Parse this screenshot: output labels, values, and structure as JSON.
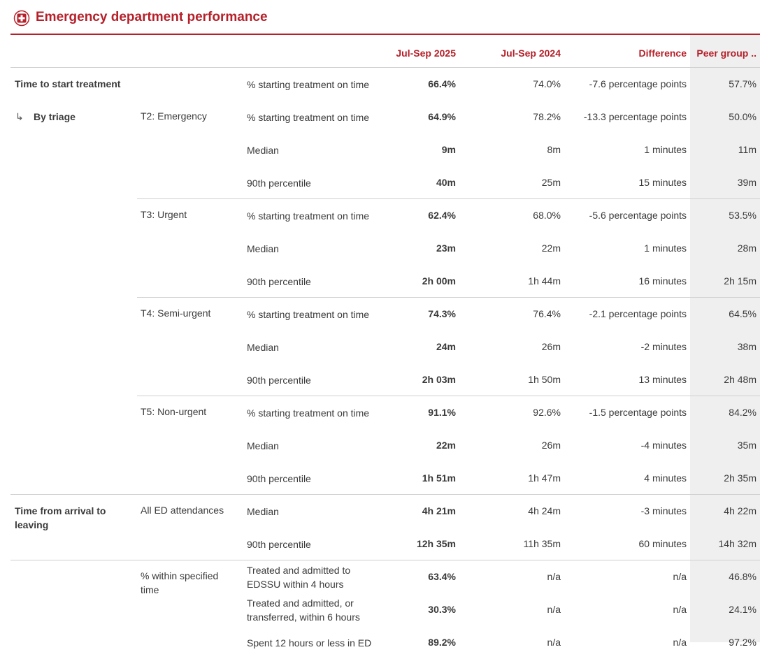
{
  "header": {
    "title": "Emergency department performance"
  },
  "table": {
    "columns": [
      "Jul-Sep 2025",
      "Jul-Sep 2024",
      "Difference",
      "Peer group .."
    ],
    "sections": [
      {
        "label": "Time to start treatment",
        "groups": [
          {
            "rows": [
              {
                "measure": "% starting treatment on time",
                "values": [
                  "66.4%",
                  "74.0%",
                  "-7.6 percentage points",
                  "57.7%"
                ]
              }
            ]
          }
        ]
      },
      {
        "label": "By triage",
        "groups": [
          {
            "label": "T2: Emergency",
            "rows": [
              {
                "measure": "% starting treatment on time",
                "values": [
                  "64.9%",
                  "78.2%",
                  "-13.3 percentage points",
                  "50.0%"
                ]
              },
              {
                "measure": "Median",
                "values": [
                  "9m",
                  "8m",
                  "1 minutes",
                  "11m"
                ]
              },
              {
                "measure": "90th percentile",
                "values": [
                  "40m",
                  "25m",
                  "15 minutes",
                  "39m"
                ]
              }
            ]
          },
          {
            "label": "T3: Urgent",
            "rows": [
              {
                "measure": "% starting treatment on time",
                "values": [
                  "62.4%",
                  "68.0%",
                  "-5.6 percentage points",
                  "53.5%"
                ]
              },
              {
                "measure": "Median",
                "values": [
                  "23m",
                  "22m",
                  "1 minutes",
                  "28m"
                ]
              },
              {
                "measure": "90th percentile",
                "values": [
                  "2h 00m",
                  "1h 44m",
                  "16 minutes",
                  "2h 15m"
                ]
              }
            ]
          },
          {
            "label": "T4: Semi-urgent",
            "rows": [
              {
                "measure": "% starting treatment on time",
                "values": [
                  "74.3%",
                  "76.4%",
                  "-2.1 percentage points",
                  "64.5%"
                ]
              },
              {
                "measure": "Median",
                "values": [
                  "24m",
                  "26m",
                  "-2 minutes",
                  "38m"
                ]
              },
              {
                "measure": "90th percentile",
                "values": [
                  "2h 03m",
                  "1h 50m",
                  "13 minutes",
                  "2h 48m"
                ]
              }
            ]
          },
          {
            "label": "T5: Non-urgent",
            "rows": [
              {
                "measure": "% starting treatment on time",
                "values": [
                  "91.1%",
                  "92.6%",
                  "-1.5 percentage points",
                  "84.2%"
                ]
              },
              {
                "measure": "Median",
                "values": [
                  "22m",
                  "26m",
                  "-4 minutes",
                  "35m"
                ]
              },
              {
                "measure": "90th percentile",
                "values": [
                  "1h 51m",
                  "1h 47m",
                  "4 minutes",
                  "2h 35m"
                ]
              }
            ]
          }
        ]
      },
      {
        "label": "Time from arrival to leaving",
        "groups": [
          {
            "label": "All ED attendances",
            "rows": [
              {
                "measure": "Median",
                "values": [
                  "4h 21m",
                  "4h 24m",
                  "-3 minutes",
                  "4h 22m"
                ]
              },
              {
                "measure": "90th percentile",
                "values": [
                  "12h 35m",
                  "11h 35m",
                  "60 minutes",
                  "14h 32m"
                ]
              }
            ]
          }
        ]
      },
      {
        "groups": [
          {
            "label": "% within specified time",
            "rows": [
              {
                "measure": "Treated and admitted to EDSSU within 4 hours",
                "values": [
                  "63.4%",
                  "n/a",
                  "n/a",
                  "46.8%"
                ]
              },
              {
                "measure": "Treated and admitted, or transferred, within 6 hours",
                "values": [
                  "30.3%",
                  "n/a",
                  "n/a",
                  "24.1%"
                ]
              },
              {
                "measure": "Spent 12 hours or less in ED",
                "values": [
                  "89.2%",
                  "n/a",
                  "n/a",
                  "97.2%"
                ]
              }
            ]
          }
        ]
      }
    ]
  }
}
